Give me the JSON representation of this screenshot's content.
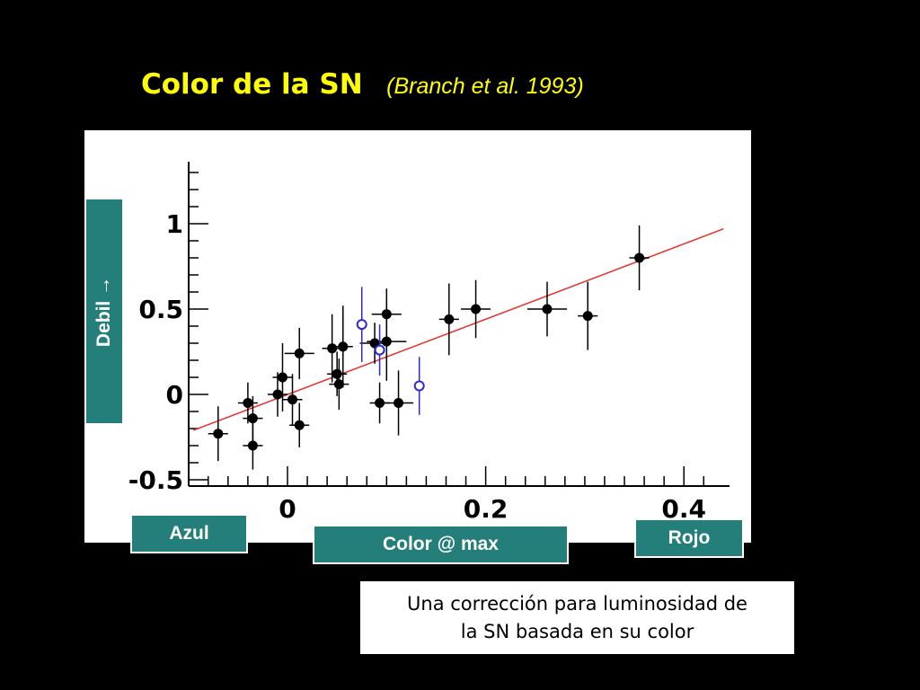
{
  "title": {
    "main": "Color de la SN",
    "sub": "(Branch et al. 1993)"
  },
  "labels": {
    "debil": "Debil →",
    "azul": "Azul",
    "color_max": "Color @ max",
    "rojo": "Rojo"
  },
  "note": {
    "line1": "Una corrección para luminosidad de",
    "line2": "la SN basada en su color"
  },
  "chart_data": {
    "type": "scatter",
    "title": "",
    "xlabel": "Color @ max",
    "ylabel": "Debil →",
    "xlim": [
      -0.1,
      0.44
    ],
    "ylim": [
      -0.52,
      1.35
    ],
    "xticks": [
      0,
      0.2,
      0.4
    ],
    "xtick_labels": [
      "0",
      "0.2",
      "0.4"
    ],
    "yticks": [
      -0.5,
      0,
      0.5,
      1
    ],
    "ytick_labels": [
      "-0.5",
      "0",
      "0.5",
      "1"
    ],
    "grid": false,
    "fit_line": {
      "color": "#e8302a",
      "x": [
        -0.095,
        0.44
      ],
      "y": [
        -0.21,
        0.97
      ]
    },
    "series": [
      {
        "marker": "filled",
        "color": "#000000",
        "points": [
          {
            "x": -0.07,
            "y": -0.23,
            "yerr": 0.16,
            "xerr": 0.01
          },
          {
            "x": -0.04,
            "y": -0.05,
            "yerr": 0.12,
            "xerr": 0.01
          },
          {
            "x": -0.035,
            "y": -0.14,
            "yerr": 0.13,
            "xerr": 0.01
          },
          {
            "x": -0.035,
            "y": -0.3,
            "yerr": 0.14,
            "xerr": 0.01
          },
          {
            "x": -0.01,
            "y": 0.0,
            "yerr": 0.13,
            "xerr": 0.01
          },
          {
            "x": -0.005,
            "y": 0.1,
            "yerr": 0.2,
            "xerr": 0.01
          },
          {
            "x": 0.005,
            "y": -0.03,
            "yerr": 0.15,
            "xerr": 0.01
          },
          {
            "x": 0.012,
            "y": -0.18,
            "yerr": 0.13,
            "xerr": 0.01
          },
          {
            "x": 0.012,
            "y": 0.24,
            "yerr": 0.15,
            "xerr": 0.015
          },
          {
            "x": 0.045,
            "y": 0.27,
            "yerr": 0.2,
            "xerr": 0.01
          },
          {
            "x": 0.05,
            "y": 0.12,
            "yerr": 0.13,
            "xerr": 0.01
          },
          {
            "x": 0.052,
            "y": 0.06,
            "yerr": 0.15,
            "xerr": 0.01
          },
          {
            "x": 0.056,
            "y": 0.28,
            "yerr": 0.24,
            "xerr": 0.01
          },
          {
            "x": 0.088,
            "y": 0.3,
            "yerr": 0.12,
            "xerr": 0.015
          },
          {
            "x": 0.093,
            "y": -0.05,
            "yerr": 0.12,
            "xerr": 0.01
          },
          {
            "x": 0.1,
            "y": 0.47,
            "yerr": 0.15,
            "xerr": 0.015
          },
          {
            "x": 0.1,
            "y": 0.31,
            "yerr": 0.23,
            "xerr": 0.02
          },
          {
            "x": 0.112,
            "y": -0.05,
            "yerr": 0.19,
            "xerr": 0.015
          },
          {
            "x": 0.163,
            "y": 0.44,
            "yerr": 0.21,
            "xerr": 0.01
          },
          {
            "x": 0.19,
            "y": 0.5,
            "yerr": 0.17,
            "xerr": 0.015
          },
          {
            "x": 0.262,
            "y": 0.5,
            "yerr": 0.16,
            "xerr": 0.02
          },
          {
            "x": 0.303,
            "y": 0.46,
            "yerr": 0.2,
            "xerr": 0.01
          },
          {
            "x": 0.355,
            "y": 0.8,
            "yerr": 0.19,
            "xerr": 0.01
          }
        ]
      },
      {
        "marker": "open",
        "color": "#2a2ad4",
        "points": [
          {
            "x": 0.075,
            "y": 0.41,
            "yerr": 0.22
          },
          {
            "x": 0.093,
            "y": 0.26,
            "yerr": 0.15
          },
          {
            "x": 0.133,
            "y": 0.05,
            "yerr": 0.17
          }
        ]
      }
    ]
  }
}
